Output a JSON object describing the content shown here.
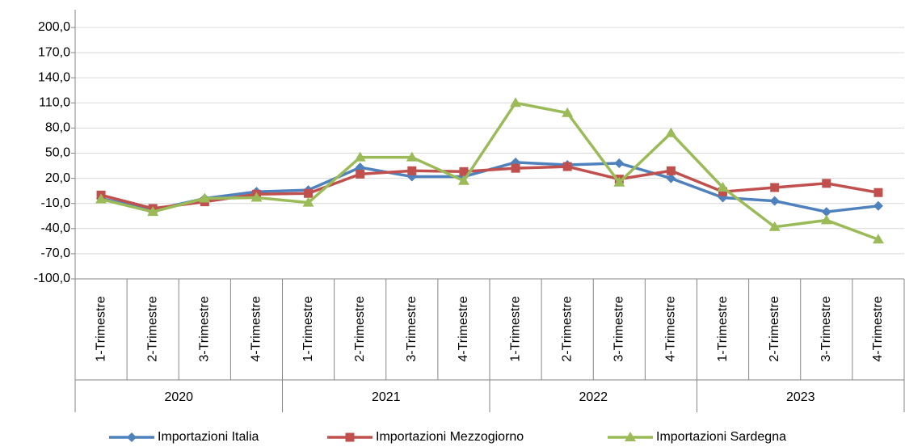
{
  "chart_data": {
    "type": "line",
    "categories": [
      "1-Trimestre",
      "2-Trimestre",
      "3-Trimestre",
      "4-Trimestre",
      "1-Trimestre",
      "2-Trimestre",
      "3-Trimestre",
      "4-Trimestre",
      "1-Trimestre",
      "2-Trimestre",
      "3-Trimestre",
      "4-Trimestre",
      "1-Trimestre",
      "2-Trimestre",
      "3-Trimestre",
      "4-Trimestre"
    ],
    "years": [
      "2020",
      "2021",
      "2022",
      "2023"
    ],
    "series": [
      {
        "name": "Importazioni Italia",
        "color": "#4f81bd",
        "marker": "diamond",
        "values": [
          -4,
          -18,
          -4,
          4,
          6,
          33,
          22,
          22,
          39,
          36,
          38,
          20,
          -3,
          -7,
          -20,
          -13
        ]
      },
      {
        "name": "Importazioni Mezzogiorno",
        "color": "#c0504d",
        "marker": "square",
        "values": [
          0,
          -16,
          -8,
          1,
          2,
          25,
          29,
          28,
          32,
          34,
          19,
          29,
          4,
          9,
          14,
          3
        ]
      },
      {
        "name": "Importazioni Sardegna",
        "color": "#9bbb59",
        "marker": "triangle",
        "values": [
          -5,
          -20,
          -4,
          -3,
          -9,
          45,
          45,
          17,
          110,
          98,
          15,
          74,
          9,
          -38,
          -30,
          -53
        ]
      }
    ],
    "ylim": [
      -100,
      200
    ],
    "yticks": [
      {
        "value": -100,
        "label": "-100,0"
      },
      {
        "value": -70,
        "label": "-70,0"
      },
      {
        "value": -40,
        "label": "-40,0"
      },
      {
        "value": -10,
        "label": "-10,0"
      },
      {
        "value": 20,
        "label": "20,0"
      },
      {
        "value": 50,
        "label": "50,0"
      },
      {
        "value": 80,
        "label": "80,0"
      },
      {
        "value": 110,
        "label": "110,0"
      },
      {
        "value": 140,
        "label": "140,0"
      },
      {
        "value": 170,
        "label": "170,0"
      },
      {
        "value": 200,
        "label": "200,0"
      }
    ],
    "grid": true,
    "legend": "bottom"
  }
}
